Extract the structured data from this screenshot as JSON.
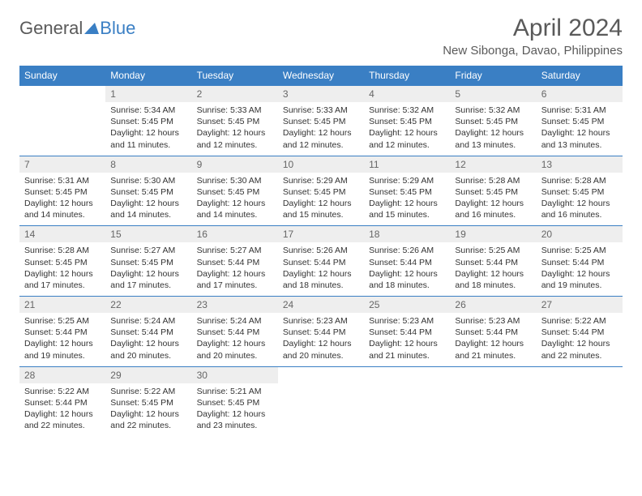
{
  "logo": {
    "part1": "General",
    "part2": "Blue"
  },
  "title": "April 2024",
  "location": "New Sibonga, Davao, Philippines",
  "colors": {
    "header_bg": "#3a7fc4",
    "header_text": "#ffffff",
    "daynum_bg": "#eeeeee",
    "daynum_text": "#666666",
    "body_text": "#333333",
    "title_text": "#5a5a5a",
    "border": "#3a7fc4",
    "page_bg": "#ffffff"
  },
  "day_headers": [
    "Sunday",
    "Monday",
    "Tuesday",
    "Wednesday",
    "Thursday",
    "Friday",
    "Saturday"
  ],
  "weeks": [
    [
      null,
      {
        "num": "1",
        "sunrise": "Sunrise: 5:34 AM",
        "sunset": "Sunset: 5:45 PM",
        "day1": "Daylight: 12 hours",
        "day2": "and 11 minutes."
      },
      {
        "num": "2",
        "sunrise": "Sunrise: 5:33 AM",
        "sunset": "Sunset: 5:45 PM",
        "day1": "Daylight: 12 hours",
        "day2": "and 12 minutes."
      },
      {
        "num": "3",
        "sunrise": "Sunrise: 5:33 AM",
        "sunset": "Sunset: 5:45 PM",
        "day1": "Daylight: 12 hours",
        "day2": "and 12 minutes."
      },
      {
        "num": "4",
        "sunrise": "Sunrise: 5:32 AM",
        "sunset": "Sunset: 5:45 PM",
        "day1": "Daylight: 12 hours",
        "day2": "and 12 minutes."
      },
      {
        "num": "5",
        "sunrise": "Sunrise: 5:32 AM",
        "sunset": "Sunset: 5:45 PM",
        "day1": "Daylight: 12 hours",
        "day2": "and 13 minutes."
      },
      {
        "num": "6",
        "sunrise": "Sunrise: 5:31 AM",
        "sunset": "Sunset: 5:45 PM",
        "day1": "Daylight: 12 hours",
        "day2": "and 13 minutes."
      }
    ],
    [
      {
        "num": "7",
        "sunrise": "Sunrise: 5:31 AM",
        "sunset": "Sunset: 5:45 PM",
        "day1": "Daylight: 12 hours",
        "day2": "and 14 minutes."
      },
      {
        "num": "8",
        "sunrise": "Sunrise: 5:30 AM",
        "sunset": "Sunset: 5:45 PM",
        "day1": "Daylight: 12 hours",
        "day2": "and 14 minutes."
      },
      {
        "num": "9",
        "sunrise": "Sunrise: 5:30 AM",
        "sunset": "Sunset: 5:45 PM",
        "day1": "Daylight: 12 hours",
        "day2": "and 14 minutes."
      },
      {
        "num": "10",
        "sunrise": "Sunrise: 5:29 AM",
        "sunset": "Sunset: 5:45 PM",
        "day1": "Daylight: 12 hours",
        "day2": "and 15 minutes."
      },
      {
        "num": "11",
        "sunrise": "Sunrise: 5:29 AM",
        "sunset": "Sunset: 5:45 PM",
        "day1": "Daylight: 12 hours",
        "day2": "and 15 minutes."
      },
      {
        "num": "12",
        "sunrise": "Sunrise: 5:28 AM",
        "sunset": "Sunset: 5:45 PM",
        "day1": "Daylight: 12 hours",
        "day2": "and 16 minutes."
      },
      {
        "num": "13",
        "sunrise": "Sunrise: 5:28 AM",
        "sunset": "Sunset: 5:45 PM",
        "day1": "Daylight: 12 hours",
        "day2": "and 16 minutes."
      }
    ],
    [
      {
        "num": "14",
        "sunrise": "Sunrise: 5:28 AM",
        "sunset": "Sunset: 5:45 PM",
        "day1": "Daylight: 12 hours",
        "day2": "and 17 minutes."
      },
      {
        "num": "15",
        "sunrise": "Sunrise: 5:27 AM",
        "sunset": "Sunset: 5:45 PM",
        "day1": "Daylight: 12 hours",
        "day2": "and 17 minutes."
      },
      {
        "num": "16",
        "sunrise": "Sunrise: 5:27 AM",
        "sunset": "Sunset: 5:44 PM",
        "day1": "Daylight: 12 hours",
        "day2": "and 17 minutes."
      },
      {
        "num": "17",
        "sunrise": "Sunrise: 5:26 AM",
        "sunset": "Sunset: 5:44 PM",
        "day1": "Daylight: 12 hours",
        "day2": "and 18 minutes."
      },
      {
        "num": "18",
        "sunrise": "Sunrise: 5:26 AM",
        "sunset": "Sunset: 5:44 PM",
        "day1": "Daylight: 12 hours",
        "day2": "and 18 minutes."
      },
      {
        "num": "19",
        "sunrise": "Sunrise: 5:25 AM",
        "sunset": "Sunset: 5:44 PM",
        "day1": "Daylight: 12 hours",
        "day2": "and 18 minutes."
      },
      {
        "num": "20",
        "sunrise": "Sunrise: 5:25 AM",
        "sunset": "Sunset: 5:44 PM",
        "day1": "Daylight: 12 hours",
        "day2": "and 19 minutes."
      }
    ],
    [
      {
        "num": "21",
        "sunrise": "Sunrise: 5:25 AM",
        "sunset": "Sunset: 5:44 PM",
        "day1": "Daylight: 12 hours",
        "day2": "and 19 minutes."
      },
      {
        "num": "22",
        "sunrise": "Sunrise: 5:24 AM",
        "sunset": "Sunset: 5:44 PM",
        "day1": "Daylight: 12 hours",
        "day2": "and 20 minutes."
      },
      {
        "num": "23",
        "sunrise": "Sunrise: 5:24 AM",
        "sunset": "Sunset: 5:44 PM",
        "day1": "Daylight: 12 hours",
        "day2": "and 20 minutes."
      },
      {
        "num": "24",
        "sunrise": "Sunrise: 5:23 AM",
        "sunset": "Sunset: 5:44 PM",
        "day1": "Daylight: 12 hours",
        "day2": "and 20 minutes."
      },
      {
        "num": "25",
        "sunrise": "Sunrise: 5:23 AM",
        "sunset": "Sunset: 5:44 PM",
        "day1": "Daylight: 12 hours",
        "day2": "and 21 minutes."
      },
      {
        "num": "26",
        "sunrise": "Sunrise: 5:23 AM",
        "sunset": "Sunset: 5:44 PM",
        "day1": "Daylight: 12 hours",
        "day2": "and 21 minutes."
      },
      {
        "num": "27",
        "sunrise": "Sunrise: 5:22 AM",
        "sunset": "Sunset: 5:44 PM",
        "day1": "Daylight: 12 hours",
        "day2": "and 22 minutes."
      }
    ],
    [
      {
        "num": "28",
        "sunrise": "Sunrise: 5:22 AM",
        "sunset": "Sunset: 5:44 PM",
        "day1": "Daylight: 12 hours",
        "day2": "and 22 minutes."
      },
      {
        "num": "29",
        "sunrise": "Sunrise: 5:22 AM",
        "sunset": "Sunset: 5:45 PM",
        "day1": "Daylight: 12 hours",
        "day2": "and 22 minutes."
      },
      {
        "num": "30",
        "sunrise": "Sunrise: 5:21 AM",
        "sunset": "Sunset: 5:45 PM",
        "day1": "Daylight: 12 hours",
        "day2": "and 23 minutes."
      },
      null,
      null,
      null,
      null
    ]
  ]
}
